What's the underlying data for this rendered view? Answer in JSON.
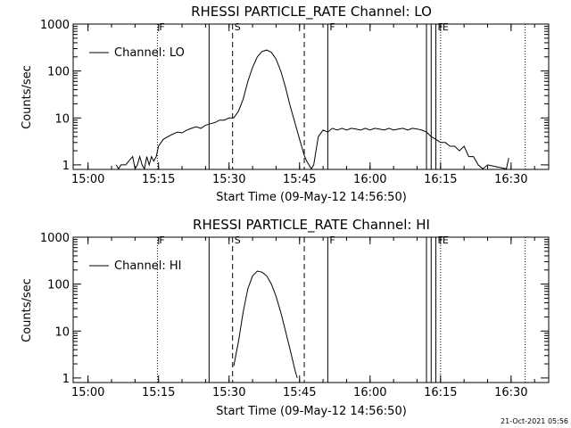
{
  "footer": {
    "timestamp": "21-Oct-2021 05:56"
  },
  "colors": {
    "background": "#ffffff",
    "foreground": "#000000"
  },
  "chart_data": [
    {
      "type": "line",
      "title": "RHESSI PARTICLE_RATE Channel: LO",
      "xlabel": "Start Time (09-May-12 14:56:50)",
      "ylabel": "Counts/sec",
      "yscale": "log",
      "xlim": [
        "14:56:50",
        "16:38:00"
      ],
      "ylim": [
        0.8,
        1000
      ],
      "xticks": [
        "15:00",
        "15:15",
        "15:30",
        "15:45",
        "16:00",
        "16:15",
        "16:30"
      ],
      "yticks": [
        "1",
        "10",
        "100",
        "1000"
      ],
      "legend": {
        "position": "top-left",
        "entries": [
          "Channel: LO"
        ]
      },
      "markers": [
        {
          "time": "15:14:45",
          "style": "dotted",
          "label": "F"
        },
        {
          "time": "15:25:45",
          "style": "solid",
          "label": ""
        },
        {
          "time": "15:30:45",
          "style": "dashed",
          "label": "S"
        },
        {
          "time": "15:46:00",
          "style": "dashed",
          "label": ""
        },
        {
          "time": "15:51:00",
          "style": "solid",
          "label": "F"
        },
        {
          "time": "16:12:00",
          "style": "solid",
          "label": ""
        },
        {
          "time": "16:13:00",
          "style": "solid",
          "label": ""
        },
        {
          "time": "16:14:00",
          "style": "solid",
          "label": "F"
        },
        {
          "time": "16:15:00",
          "style": "dotted",
          "label": "E"
        },
        {
          "time": "16:33:00",
          "style": "dotted",
          "label": ""
        }
      ],
      "series": [
        {
          "name": "Channel: LO",
          "x": [
            "15:06:00",
            "15:06:30",
            "15:07:00",
            "15:08:00",
            "15:09:30",
            "15:10:00",
            "15:10:30",
            "15:11:00",
            "15:11:30",
            "15:12:00",
            "15:12:30",
            "15:13:00",
            "15:13:30",
            "15:14:00",
            "15:14:30",
            "15:15:00",
            "15:16:00",
            "15:17:00",
            "15:18:00",
            "15:19:00",
            "15:20:00",
            "15:21:00",
            "15:22:00",
            "15:23:00",
            "15:24:00",
            "15:25:00",
            "15:26:00",
            "15:27:00",
            "15:28:00",
            "15:29:00",
            "15:30:00",
            "15:31:00",
            "15:32:00",
            "15:33:00",
            "15:34:00",
            "15:35:00",
            "15:36:00",
            "15:37:00",
            "15:38:00",
            "15:39:00",
            "15:40:00",
            "15:41:00",
            "15:42:00",
            "15:43:00",
            "15:44:00",
            "15:45:00",
            "15:46:00",
            "15:46:30",
            "15:47:00",
            "15:47:30",
            "15:48:00",
            "15:49:00",
            "15:50:00",
            "15:51:00",
            "15:52:00",
            "15:53:00",
            "15:54:00",
            "15:55:00",
            "15:56:00",
            "15:57:00",
            "15:58:00",
            "15:59:00",
            "16:00:00",
            "16:01:00",
            "16:02:00",
            "16:03:00",
            "16:04:00",
            "16:05:00",
            "16:06:00",
            "16:07:00",
            "16:08:00",
            "16:09:00",
            "16:10:00",
            "16:11:00",
            "16:12:00",
            "16:13:00",
            "16:14:00",
            "16:15:00",
            "16:16:00",
            "16:17:00",
            "16:18:00",
            "16:19:00",
            "16:20:00",
            "16:21:00",
            "16:22:00",
            "16:23:00",
            "16:24:00",
            "16:25:00",
            "16:29:00",
            "16:29:30"
          ],
          "y": [
            1,
            0.82,
            1,
            1,
            1.5,
            0.82,
            1,
            1.5,
            1,
            0.82,
            1.5,
            1,
            1.5,
            1.2,
            1.5,
            2.5,
            3.5,
            4.0,
            4.5,
            5.0,
            4.8,
            5.5,
            6.0,
            6.5,
            6.0,
            7.0,
            7.5,
            8.0,
            9.0,
            9.0,
            10.0,
            10.0,
            14.0,
            25.0,
            60.0,
            120.0,
            200.0,
            260.0,
            280.0,
            250.0,
            180.0,
            100.0,
            45.0,
            18.0,
            8.0,
            3.5,
            1.6,
            1.2,
            1,
            0.82,
            1,
            4.0,
            5.5,
            5.0,
            6.0,
            5.5,
            6.0,
            5.5,
            6.0,
            5.8,
            5.5,
            6.0,
            5.5,
            6.0,
            5.8,
            5.5,
            6.0,
            5.5,
            5.8,
            6.0,
            5.5,
            6.0,
            5.8,
            5.5,
            5.0,
            4.0,
            3.5,
            3.0,
            3.0,
            2.5,
            2.5,
            2.0,
            2.5,
            1.5,
            1.5,
            1.0,
            0.82,
            1.0,
            0.82,
            1.4
          ]
        }
      ]
    },
    {
      "type": "line",
      "title": "RHESSI PARTICLE_RATE Channel: HI",
      "xlabel": "Start Time (09-May-12 14:56:50)",
      "ylabel": "Counts/sec",
      "yscale": "log",
      "xlim": [
        "14:56:50",
        "16:38:00"
      ],
      "ylim": [
        0.8,
        1000
      ],
      "xticks": [
        "15:00",
        "15:15",
        "15:30",
        "15:45",
        "16:00",
        "16:15",
        "16:30"
      ],
      "yticks": [
        "1",
        "10",
        "100",
        "1000"
      ],
      "legend": {
        "position": "top-left",
        "entries": [
          "Channel: HI"
        ]
      },
      "markers": [
        {
          "time": "15:14:45",
          "style": "dotted",
          "label": "F"
        },
        {
          "time": "15:25:45",
          "style": "solid",
          "label": ""
        },
        {
          "time": "15:30:45",
          "style": "dashed",
          "label": "S"
        },
        {
          "time": "15:46:00",
          "style": "dashed",
          "label": ""
        },
        {
          "time": "15:51:00",
          "style": "solid",
          "label": "F"
        },
        {
          "time": "16:12:00",
          "style": "solid",
          "label": ""
        },
        {
          "time": "16:13:00",
          "style": "solid",
          "label": ""
        },
        {
          "time": "16:14:00",
          "style": "solid",
          "label": "F"
        },
        {
          "time": "16:15:00",
          "style": "dotted",
          "label": "E"
        },
        {
          "time": "16:33:00",
          "style": "dotted",
          "label": ""
        }
      ],
      "series": [
        {
          "name": "Channel: HI",
          "x": [
            "15:31:00",
            "15:32:00",
            "15:33:00",
            "15:34:00",
            "15:35:00",
            "15:36:00",
            "15:37:00",
            "15:38:00",
            "15:39:00",
            "15:40:00",
            "15:41:00",
            "15:42:00",
            "15:43:00",
            "15:44:00",
            "15:44:30"
          ],
          "y": [
            1.8,
            6.0,
            25.0,
            80.0,
            150.0,
            190.0,
            180.0,
            150.0,
            100.0,
            55.0,
            25.0,
            10.0,
            4.0,
            1.5,
            1.0
          ]
        }
      ]
    }
  ]
}
